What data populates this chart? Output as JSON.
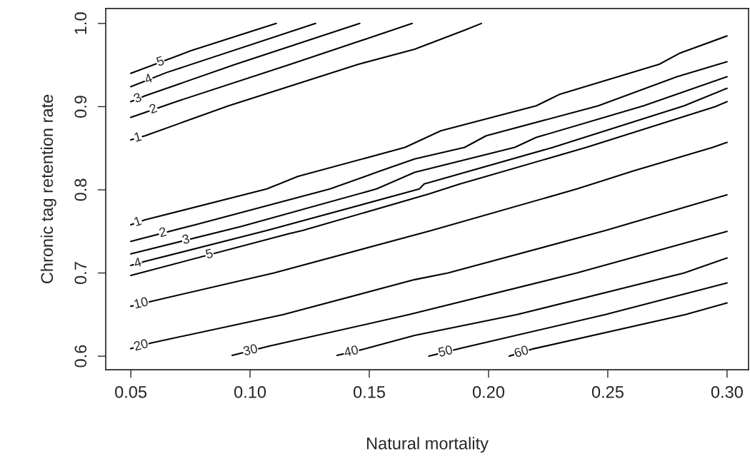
{
  "chart_data": {
    "type": "line",
    "xlabel": "Natural mortality",
    "ylabel": "Chronic tag retention rate",
    "xlim": [
      0.0395,
      0.309
    ],
    "ylim": [
      0.5837,
      1.018
    ],
    "xticks": [
      {
        "value": 0.05,
        "label": "0.05"
      },
      {
        "value": 0.1,
        "label": "0.10"
      },
      {
        "value": 0.15,
        "label": "0.15"
      },
      {
        "value": 0.2,
        "label": "0.20"
      },
      {
        "value": 0.25,
        "label": "0.25"
      },
      {
        "value": 0.3,
        "label": "0.30"
      }
    ],
    "yticks": [
      0.6,
      0.7,
      0.8,
      0.9,
      {
        "value": 1.0,
        "label": "1.0"
      }
    ],
    "grid": false,
    "legend": false,
    "marker": "none",
    "line_style": "solid",
    "series": [
      {
        "name": "5",
        "color": "#000000",
        "x": [
          0.05,
          0.075,
          0.111
        ],
        "values": [
          0.94,
          0.967,
          1.0
        ]
      },
      {
        "name": "4",
        "color": "#000000",
        "x": [
          0.05,
          0.065,
          0.1275
        ],
        "values": [
          0.924,
          0.941,
          1.0
        ]
      },
      {
        "name": "3",
        "color": "#000000",
        "x": [
          0.05,
          0.056,
          0.094,
          0.146
        ],
        "values": [
          0.906,
          0.913,
          0.951,
          1.0
        ]
      },
      {
        "name": "2",
        "color": "#000000",
        "x": [
          0.05,
          0.069,
          0.117,
          0.168
        ],
        "values": [
          0.887,
          0.906,
          0.951,
          1.0
        ]
      },
      {
        "name": "1",
        "color": "#000000",
        "x": [
          0.05,
          0.056,
          0.091,
          0.1455,
          0.169,
          0.19,
          0.197
        ],
        "values": [
          0.86,
          0.865,
          0.901,
          0.951,
          0.969,
          0.992,
          1.0
        ]
      },
      {
        "name": "1",
        "color": "#000000",
        "x": [
          0.05,
          0.056,
          0.107,
          0.12,
          0.165,
          0.18,
          0.22,
          0.23,
          0.2716,
          0.28,
          0.3
        ],
        "values": [
          0.758,
          0.764,
          0.801,
          0.816,
          0.851,
          0.871,
          0.901,
          0.915,
          0.951,
          0.964,
          0.985
        ]
      },
      {
        "name": "2",
        "color": "#000000",
        "x": [
          0.05,
          0.077,
          0.1335,
          0.154,
          0.169,
          0.19,
          0.199,
          0.246,
          0.279,
          0.3
        ],
        "values": [
          0.738,
          0.758,
          0.801,
          0.822,
          0.837,
          0.851,
          0.865,
          0.901,
          0.936,
          0.954
        ]
      },
      {
        "name": "3",
        "color": "#000000",
        "x": [
          0.05,
          0.0964,
          0.153,
          0.169,
          0.211,
          0.22,
          0.265,
          0.3
        ],
        "values": [
          0.723,
          0.756,
          0.801,
          0.821,
          0.851,
          0.863,
          0.901,
          0.936
        ]
      },
      {
        "name": "4",
        "color": "#000000",
        "x": [
          0.05,
          0.056,
          0.107,
          0.171,
          0.173,
          0.227,
          0.282,
          0.3
        ],
        "values": [
          0.709,
          0.714,
          0.751,
          0.801,
          0.807,
          0.851,
          0.901,
          0.922
        ]
      },
      {
        "name": "5",
        "color": "#000000",
        "x": [
          0.05,
          0.116,
          0.122,
          0.175,
          0.188,
          0.241,
          0.295,
          0.3
        ],
        "values": [
          0.697,
          0.747,
          0.751,
          0.795,
          0.807,
          0.851,
          0.9,
          0.906
        ]
      },
      {
        "name": "10",
        "color": "#000000",
        "x": [
          0.05,
          0.0587,
          0.11,
          0.176,
          0.237,
          0.26,
          0.294,
          0.3
        ],
        "values": [
          0.66,
          0.666,
          0.7,
          0.751,
          0.801,
          0.822,
          0.851,
          0.857
        ]
      },
      {
        "name": "20",
        "color": "#000000",
        "x": [
          0.05,
          0.0587,
          0.114,
          0.169,
          0.183,
          0.249,
          0.3
        ],
        "values": [
          0.609,
          0.616,
          0.65,
          0.692,
          0.7,
          0.751,
          0.794
        ]
      },
      {
        "name": "30",
        "color": "#000000",
        "x": [
          0.0925,
          0.108,
          0.1667,
          0.237,
          0.3
        ],
        "values": [
          0.601,
          0.612,
          0.65,
          0.7,
          0.75
        ]
      },
      {
        "name": "40",
        "color": "#000000",
        "x": [
          0.1365,
          0.1485,
          0.169,
          0.212,
          0.282,
          0.3
        ],
        "values": [
          0.601,
          0.609,
          0.625,
          0.65,
          0.7,
          0.718
        ]
      },
      {
        "name": "50",
        "color": "#000000",
        "x": [
          0.175,
          0.189,
          0.249,
          0.3
        ],
        "values": [
          0.6,
          0.61,
          0.65,
          0.688
        ]
      },
      {
        "name": "60",
        "color": "#000000",
        "x": [
          0.2087,
          0.219,
          0.2826,
          0.3
        ],
        "values": [
          0.6,
          0.609,
          0.65,
          0.664
        ]
      }
    ]
  }
}
